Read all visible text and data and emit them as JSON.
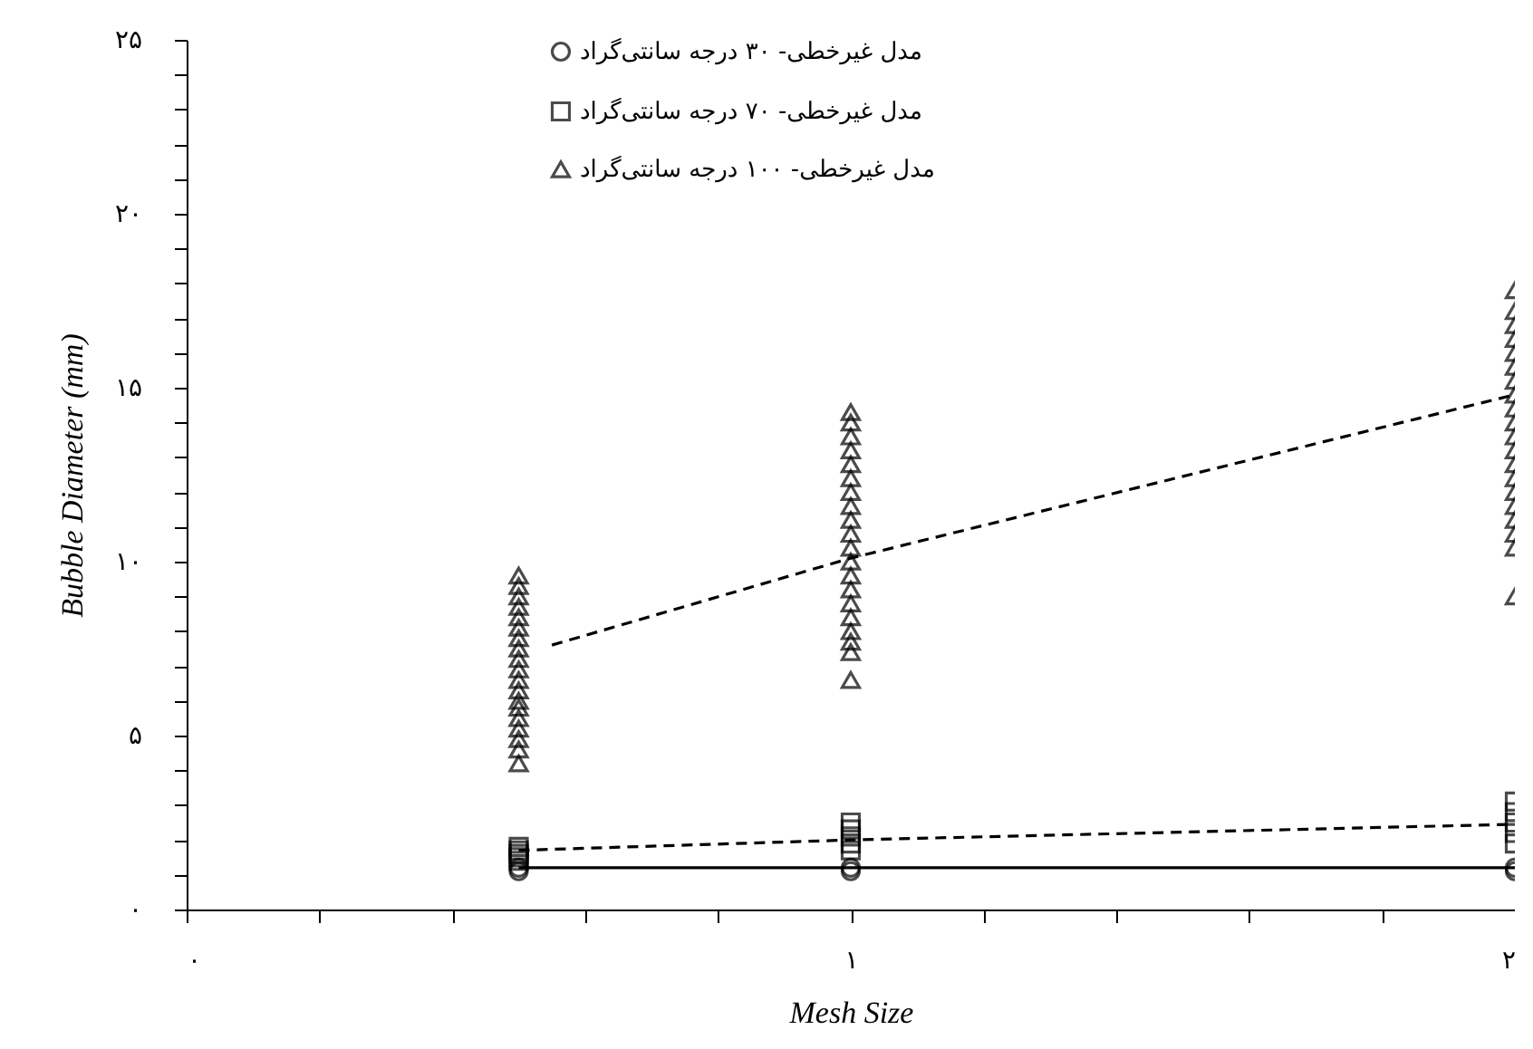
{
  "chart_data": {
    "type": "scatter",
    "xlabel": "Mesh Size",
    "ylabel": "Bubble Diameter (mm)",
    "xlim": [
      0,
      2
    ],
    "ylim": [
      0,
      25
    ],
    "xticks": [
      {
        "value": 0,
        "label": "۰"
      },
      {
        "value": 0.2,
        "label": null
      },
      {
        "value": 0.4,
        "label": null
      },
      {
        "value": 0.6,
        "label": null
      },
      {
        "value": 0.8,
        "label": null
      },
      {
        "value": 1,
        "label": "۱"
      },
      {
        "value": 1.2,
        "label": null
      },
      {
        "value": 1.4,
        "label": null
      },
      {
        "value": 1.6,
        "label": null
      },
      {
        "value": 1.8,
        "label": null
      },
      {
        "value": 2,
        "label": "۲"
      }
    ],
    "yticks": [
      {
        "value": 0,
        "label": "۰"
      },
      {
        "value": 1,
        "label": null
      },
      {
        "value": 2,
        "label": null
      },
      {
        "value": 3,
        "label": null
      },
      {
        "value": 4,
        "label": null
      },
      {
        "value": 5,
        "label": "۵"
      },
      {
        "value": 6,
        "label": null
      },
      {
        "value": 7,
        "label": null
      },
      {
        "value": 8,
        "label": null
      },
      {
        "value": 9,
        "label": null
      },
      {
        "value": 10,
        "label": "۱۰"
      },
      {
        "value": 11,
        "label": null
      },
      {
        "value": 12,
        "label": null
      },
      {
        "value": 13,
        "label": null
      },
      {
        "value": 14,
        "label": null
      },
      {
        "value": 15,
        "label": "۱۵"
      },
      {
        "value": 16,
        "label": null
      },
      {
        "value": 17,
        "label": null
      },
      {
        "value": 18,
        "label": null
      },
      {
        "value": 19,
        "label": null
      },
      {
        "value": 20,
        "label": "۲۰"
      },
      {
        "value": 21,
        "label": null
      },
      {
        "value": 22,
        "label": null
      },
      {
        "value": 23,
        "label": null
      },
      {
        "value": 24,
        "label": null
      },
      {
        "value": 25,
        "label": "۲۵"
      }
    ],
    "grid": false,
    "legend": "top left",
    "series": [
      {
        "name": "مدل غیرخطی- ۳۰ درجه سانتی‌گراد",
        "type": "scatter",
        "marker": "circle",
        "color": "#000000",
        "x": [
          0.5,
          0.5,
          1,
          1,
          2,
          2
        ],
        "values": [
          1.1,
          1.2,
          1.1,
          1.2,
          1.1,
          1.2
        ]
      },
      {
        "name": "مدل غیرخطی- ۷۰ درجه سانتی‌گراد",
        "type": "scatter",
        "marker": "square",
        "color": "#000000",
        "x": [
          0.5,
          0.5,
          0.5,
          0.5,
          0.5,
          1,
          1,
          1,
          1,
          1,
          2,
          2,
          2,
          2,
          2
        ],
        "values": [
          1.4,
          1.5,
          1.6,
          1.7,
          1.8,
          1.7,
          1.9,
          2.1,
          2.3,
          2.5,
          1.9,
          2.2,
          2.5,
          2.8,
          3.1
        ]
      },
      {
        "name": "مدل غیرخطی- ۱۰۰ درجه سانتی‌گراد",
        "type": "scatter",
        "marker": "triangle",
        "color": "#000000",
        "x": [
          0.5,
          0.5,
          0.5,
          0.5,
          0.5,
          0.5,
          0.5,
          0.5,
          0.5,
          0.5,
          0.5,
          0.5,
          0.5,
          0.5,
          0.5,
          0.5,
          0.5,
          0.5,
          0.5,
          1,
          1,
          1,
          1,
          1,
          1,
          1,
          1,
          1,
          1,
          1,
          1,
          1,
          1,
          1,
          1,
          1,
          1,
          1,
          1,
          2,
          2,
          2,
          2,
          2,
          2,
          2,
          2,
          2,
          2,
          2,
          2,
          2,
          2,
          2,
          2,
          2,
          2,
          2,
          2
        ],
        "values": [
          4.2,
          4.6,
          4.9,
          5.2,
          5.5,
          5.8,
          6.0,
          6.3,
          6.6,
          6.9,
          7.2,
          7.5,
          7.8,
          8.1,
          8.4,
          8.7,
          9.0,
          9.3,
          9.6,
          6.6,
          7.4,
          7.7,
          8.0,
          8.4,
          8.8,
          9.2,
          9.6,
          10.0,
          10.4,
          10.8,
          11.2,
          11.6,
          12.0,
          12.4,
          12.8,
          13.2,
          13.6,
          14.0,
          14.3,
          9.0,
          10.4,
          10.8,
          11.2,
          11.6,
          12.0,
          12.4,
          12.8,
          13.2,
          13.6,
          14.0,
          14.4,
          14.8,
          15.2,
          15.6,
          16.0,
          16.4,
          16.8,
          17.2,
          17.8
        ]
      },
      {
        "type": "line",
        "line_style": "solid",
        "color": "#000000",
        "x": [
          0.5,
          1,
          2
        ],
        "values": [
          1.2,
          1.2,
          1.2
        ]
      },
      {
        "type": "line",
        "line_style": "dashed",
        "color": "#000000",
        "x": [
          0.5,
          1,
          2
        ],
        "values": [
          1.7,
          2.0,
          2.45
        ]
      },
      {
        "type": "line",
        "line_style": "dashed",
        "color": "#000000",
        "x": [
          0.55,
          1,
          2
        ],
        "values": [
          7.6,
          10.1,
          14.8
        ]
      }
    ]
  }
}
